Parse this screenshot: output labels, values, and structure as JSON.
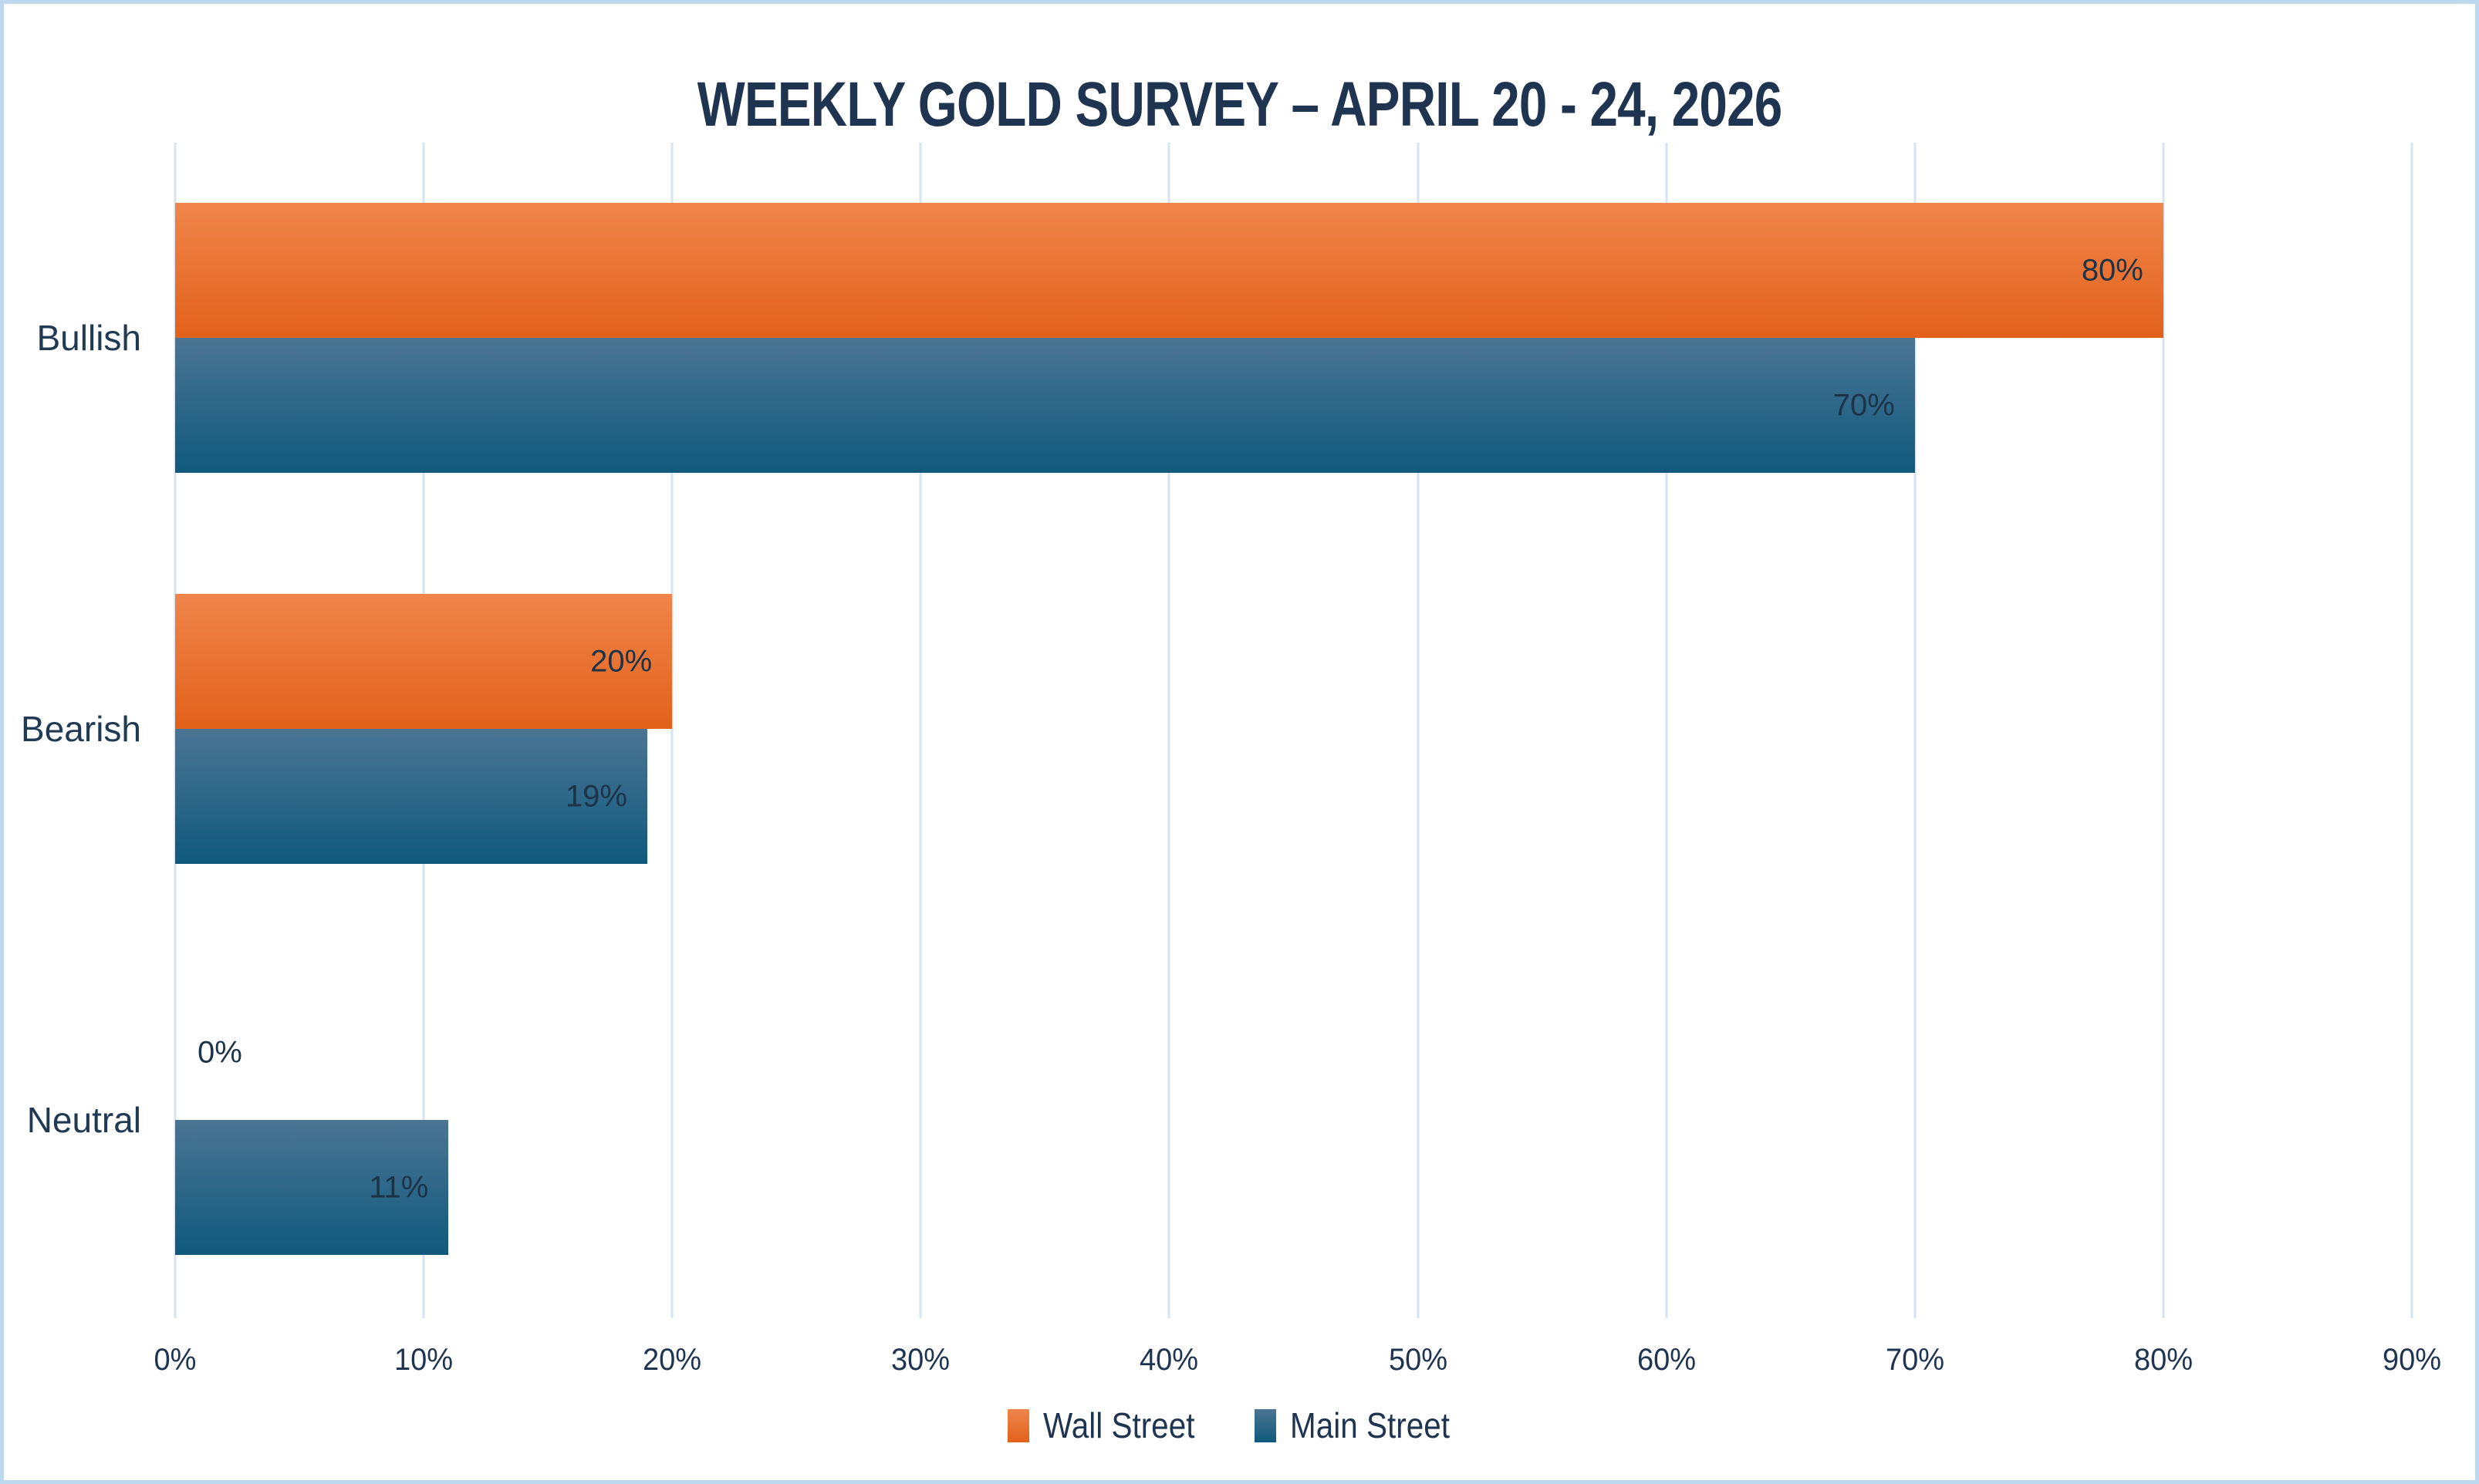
{
  "chart_data": {
    "type": "bar",
    "orientation": "horizontal",
    "title": "WEEKLY GOLD SURVEY – APRIL 20 - 24, 2026",
    "categories": [
      "Bullish",
      "Bearish",
      "Neutral"
    ],
    "series": [
      {
        "name": "Wall Street",
        "values": [
          80,
          20,
          0
        ],
        "labels": [
          "80%",
          "20%",
          "0%"
        ],
        "color_top": "#F0854B",
        "color_bottom": "#E2611B"
      },
      {
        "name": "Main Street",
        "values": [
          70,
          19,
          11
        ],
        "labels": [
          "70%",
          "19%",
          "11%"
        ],
        "color_top": "#4B7593",
        "color_bottom": "#10597D"
      }
    ],
    "xlim": [
      0,
      90
    ],
    "x_ticks": [
      {
        "value": 0,
        "label": "0%"
      },
      {
        "value": 10,
        "label": "10%"
      },
      {
        "value": 20,
        "label": "20%"
      },
      {
        "value": 30,
        "label": "30%"
      },
      {
        "value": 40,
        "label": "40%"
      },
      {
        "value": 50,
        "label": "50%"
      },
      {
        "value": 60,
        "label": "60%"
      },
      {
        "value": 70,
        "label": "70%"
      },
      {
        "value": 80,
        "label": "80%"
      },
      {
        "value": 90,
        "label": "90%"
      }
    ],
    "grid": true,
    "legend_position": "bottom"
  },
  "colors": {
    "background": "#FFFFFF",
    "frame_border": "#BDD7EE",
    "gridline": "#D5E3F2",
    "title_text": "#1E3450",
    "category_text": "#203A54",
    "tick_text": "#1E3450",
    "value_label_text": "#1C3348",
    "legend_text": "#1E3450"
  }
}
